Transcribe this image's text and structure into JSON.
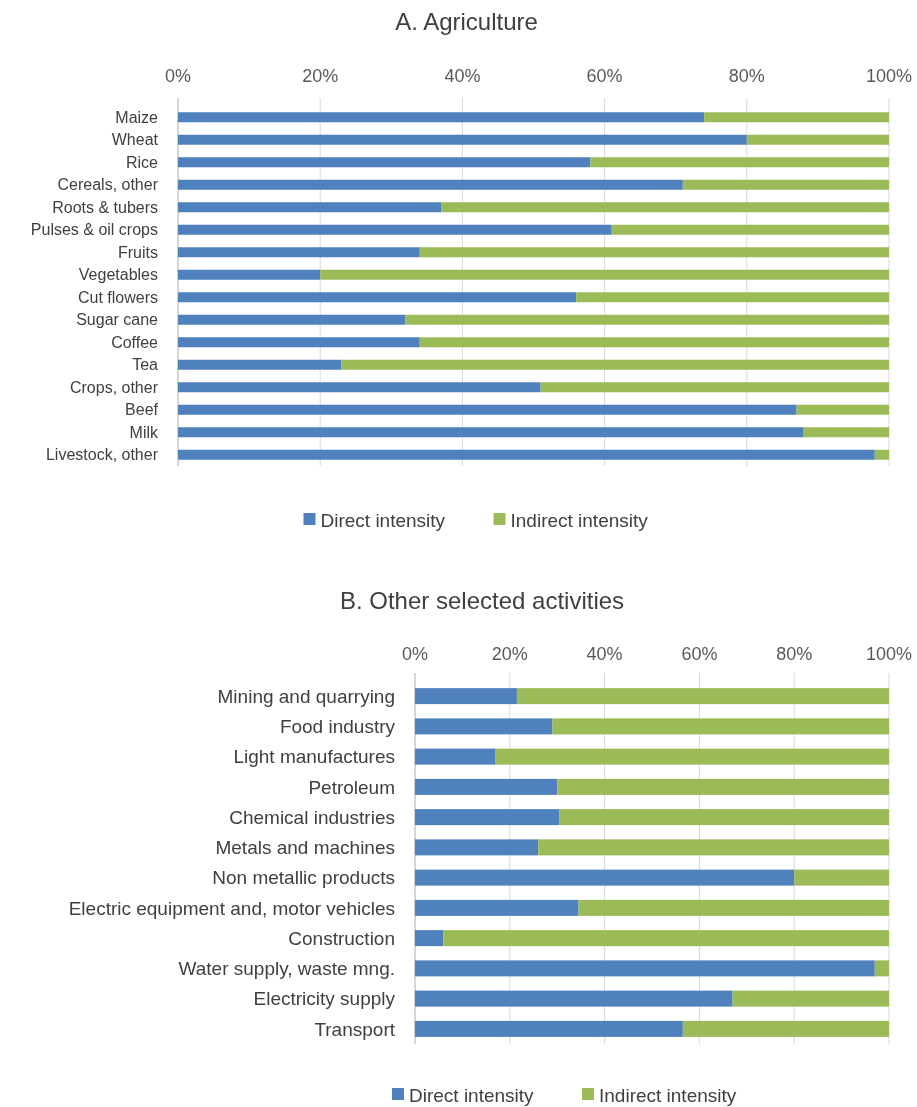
{
  "chart_data": [
    {
      "type": "bar",
      "title": "A. Agriculture",
      "orientation": "horizontal",
      "stacked": true,
      "categories": [
        "Maize",
        "Wheat",
        "Rice",
        "Cereals, other",
        "Roots & tubers",
        "Pulses & oil crops",
        "Fruits",
        "Vegetables",
        "Cut flowers",
        "Sugar cane",
        "Coffee",
        "Tea",
        "Crops, other",
        "Beef",
        "Milk",
        "Livestock, other"
      ],
      "series": [
        {
          "name": "Direct intensity",
          "color": "#4f81bd",
          "values": [
            74,
            80,
            58,
            71,
            37,
            61,
            34,
            20,
            56,
            32,
            34,
            23,
            51,
            87,
            88,
            98
          ]
        },
        {
          "name": "Indirect intensity",
          "color": "#9bbb59",
          "values": [
            26,
            20,
            42,
            29,
            63,
            39,
            66,
            80,
            44,
            68,
            66,
            77,
            49,
            13,
            12,
            2
          ]
        }
      ],
      "xlim": [
        0,
        100
      ],
      "xticks": [
        {
          "value": 0,
          "label": "0%"
        },
        {
          "value": 20,
          "label": "20%"
        },
        {
          "value": 40,
          "label": "40%"
        },
        {
          "value": 60,
          "label": "60%"
        },
        {
          "value": 80,
          "label": "80%"
        },
        {
          "value": 100,
          "label": "100%"
        }
      ],
      "grid": "x",
      "legend": "bottom"
    },
    {
      "type": "bar",
      "title": "B. Other selected activities",
      "orientation": "horizontal",
      "stacked": true,
      "categories": [
        "Mining and quarrying",
        "Food industry",
        "Light manufactures",
        "Petroleum",
        "Chemical industries",
        "Metals and machines",
        "Non metallic products",
        "Electric  equipment and, motor vehicles",
        "Construction",
        "Water supply, waste mng.",
        "Electricity supply",
        "Transport"
      ],
      "series": [
        {
          "name": "Direct intensity",
          "color": "#4f81bd",
          "values": [
            21.5,
            29,
            17,
            30,
            30.5,
            26,
            80,
            34.5,
            6,
            97,
            67,
            56.5
          ]
        },
        {
          "name": "Indirect intensity",
          "color": "#9bbb59",
          "values": [
            78.5,
            71,
            83,
            70,
            69.5,
            74,
            20,
            65.5,
            94,
            3,
            33,
            43.5
          ]
        }
      ],
      "xlim": [
        0,
        100
      ],
      "xticks": [
        {
          "value": 0,
          "label": "0%"
        },
        {
          "value": 20,
          "label": "20%"
        },
        {
          "value": 40,
          "label": "40%"
        },
        {
          "value": 60,
          "label": "60%"
        },
        {
          "value": 80,
          "label": "80%"
        },
        {
          "value": 100,
          "label": "100%"
        }
      ],
      "grid": "x",
      "legend": "bottom"
    }
  ]
}
